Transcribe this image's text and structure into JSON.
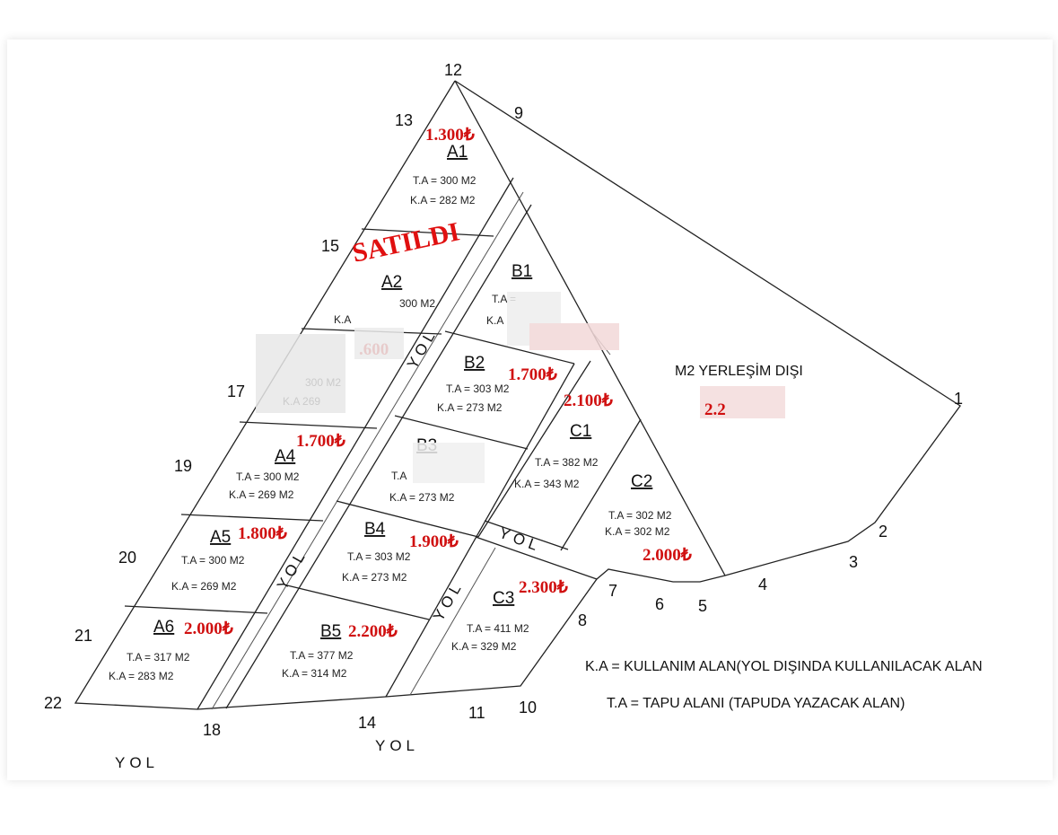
{
  "points": [
    "12",
    "13",
    "9",
    "15",
    "17",
    "19",
    "20",
    "21",
    "22",
    "18",
    "14",
    "11",
    "10",
    "8",
    "7",
    "6",
    "5",
    "4",
    "3",
    "2",
    "1"
  ],
  "road_label": "YOL",
  "sold_stamp": "SATILDI",
  "outside_zone": "M2 YERLEŞİM DIŞI",
  "outside_price": "2.2",
  "parcels": [
    {
      "id": "A1",
      "ta": "T.A = 300 M2",
      "ka": "K.A = 282 M2",
      "price": "1.300₺"
    },
    {
      "id": "A2",
      "ta": "300 M2",
      "ka": "K.A",
      "price": ""
    },
    {
      "id": "A3",
      "ta": "300 M2",
      "ka": "K.A    269",
      "price": ".600"
    },
    {
      "id": "A4",
      "ta": "T.A = 300 M2",
      "ka": "K.A = 269 M2",
      "price": "1.700₺"
    },
    {
      "id": "A5",
      "ta": "T.A = 300 M2",
      "ka": "K.A = 269 M2",
      "price": "1.800₺"
    },
    {
      "id": "A6",
      "ta": "T.A = 317 M2",
      "ka": "K.A = 283 M2",
      "price": "2.000₺"
    },
    {
      "id": "B1",
      "ta": "T.A =",
      "ka": "K.A",
      "price": ""
    },
    {
      "id": "B2",
      "ta": "T.A = 303 M2",
      "ka": "K.A = 273 M2",
      "price": "1.700₺"
    },
    {
      "id": "B3",
      "ta": "T.A",
      "ka": "K.A = 273 M2",
      "price": ""
    },
    {
      "id": "B4",
      "ta": "T.A = 303 M2",
      "ka": "K.A = 273 M2",
      "price": "1.900₺"
    },
    {
      "id": "B5",
      "ta": "T.A = 377 M2",
      "ka": "K.A = 314 M2",
      "price": "2.200₺"
    },
    {
      "id": "C1",
      "ta": "T.A = 382 M2",
      "ka": "K.A = 343 M2",
      "price": "2.100₺"
    },
    {
      "id": "C2",
      "ta": "T.A = 302 M2",
      "ka": "K.A = 302 M2",
      "price": "2.000₺"
    },
    {
      "id": "C3",
      "ta": "T.A = 411 M2",
      "ka": "K.A = 329 M2",
      "price": "2.300₺"
    }
  ],
  "legend": {
    "ka": "K.A = KULLANIM ALAN(YOL DIŞINDA KULLANILACAK ALAN",
    "ta": "T.A = TAPU ALANI (TAPUDA YAZACAK ALAN)"
  }
}
